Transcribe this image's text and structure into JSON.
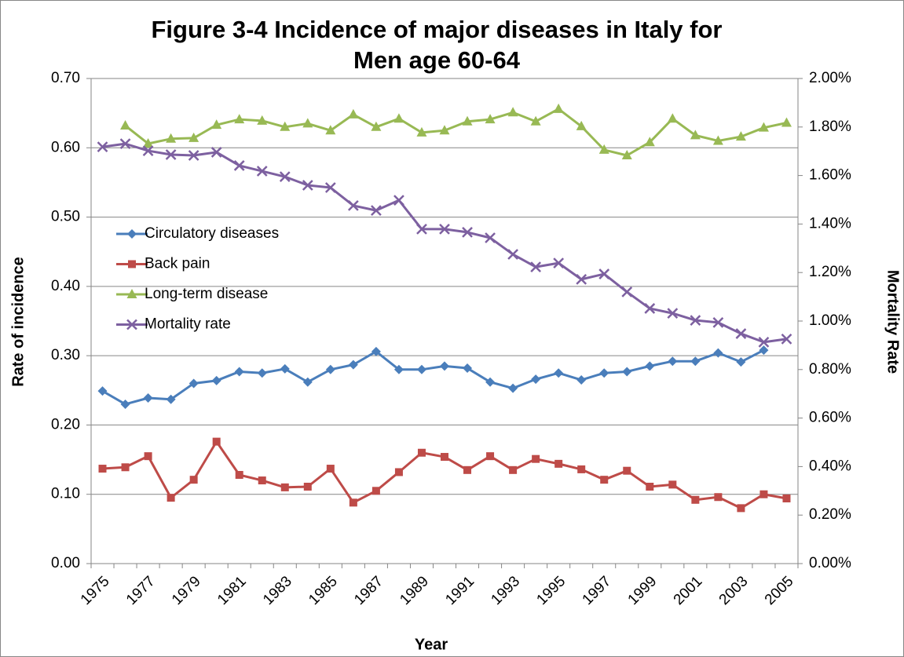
{
  "chart_data": {
    "type": "line",
    "title": [
      "Figure 3-4 Incidence of major diseases in Italy for",
      "Men age 60-64"
    ],
    "x_label": "Year",
    "y_label": "Rate of incidence",
    "y2_label": "Mortality Rate",
    "categories": [
      "1975",
      null,
      "1977",
      null,
      "1979",
      null,
      "1981",
      null,
      "1983",
      null,
      "1985",
      null,
      "1987",
      null,
      "1989",
      null,
      "1991",
      null,
      "1993",
      null,
      "1995",
      null,
      "1997",
      null,
      "1999",
      null,
      "2001",
      null,
      "2003",
      null,
      "2005"
    ],
    "ylim": [
      0,
      0.7
    ],
    "yticks": [
      {
        "value": 0,
        "label": "0.00"
      },
      {
        "value": 0.1,
        "label": "0.10"
      },
      {
        "value": 0.2,
        "label": "0.20"
      },
      {
        "value": 0.3,
        "label": "0.30"
      },
      {
        "value": 0.4,
        "label": "0.40"
      },
      {
        "value": 0.5,
        "label": "0.50"
      },
      {
        "value": 0.6,
        "label": "0.60"
      },
      {
        "value": 0.7,
        "label": "0.70"
      }
    ],
    "y2lim": [
      0,
      2
    ],
    "y2ticks": [
      {
        "value": 0,
        "label": "0.00%"
      },
      {
        "value": 0.2,
        "label": "0.20%"
      },
      {
        "value": 0.4,
        "label": "0.40%"
      },
      {
        "value": 0.6,
        "label": "0.60%"
      },
      {
        "value": 0.8,
        "label": "0.80%"
      },
      {
        "value": 1,
        "label": "1.00%"
      },
      {
        "value": 1.2,
        "label": "1.20%"
      },
      {
        "value": 1.4,
        "label": "1.40%"
      },
      {
        "value": 1.6,
        "label": "1.60%"
      },
      {
        "value": 1.8,
        "label": "1.80%"
      },
      {
        "value": 2,
        "label": "2.00%"
      }
    ],
    "grid": true,
    "legend": "left",
    "series": [
      {
        "name": "Circulatory diseases",
        "color": "#4a7ebb",
        "marker": "diamond",
        "values": [
          0.249,
          0.23,
          0.239,
          0.237,
          0.26,
          0.264,
          0.277,
          0.275,
          0.281,
          0.262,
          0.28,
          0.287,
          0.306,
          0.28,
          0.28,
          0.285,
          0.282,
          0.262,
          0.253,
          0.266,
          0.275,
          0.265,
          0.275,
          0.277,
          0.285,
          0.292,
          0.292,
          0.304,
          0.291,
          0.308,
          null
        ]
      },
      {
        "name": "Back pain",
        "color": "#be4b48",
        "marker": "square",
        "values": [
          0.137,
          0.139,
          0.155,
          0.095,
          0.121,
          0.176,
          0.128,
          0.12,
          0.11,
          0.111,
          0.137,
          0.088,
          0.105,
          0.132,
          0.16,
          0.154,
          0.135,
          0.155,
          0.135,
          0.151,
          0.144,
          0.136,
          0.121,
          0.134,
          0.111,
          0.114,
          0.092,
          0.096,
          0.08,
          0.1,
          0.094
        ]
      },
      {
        "name": "Long-term disease",
        "color": "#98b954",
        "marker": "triangle",
        "values": [
          null,
          0.632,
          0.606,
          0.613,
          0.614,
          0.633,
          0.641,
          0.639,
          0.63,
          0.635,
          0.625,
          0.648,
          0.63,
          0.642,
          0.622,
          0.625,
          0.638,
          0.641,
          0.651,
          0.638,
          0.656,
          0.631,
          0.597,
          0.589,
          0.608,
          0.642,
          0.618,
          0.61,
          0.616,
          0.629,
          0.636
        ]
      },
      {
        "name": "Mortality rate",
        "color": "#7d60a0",
        "marker": "x",
        "axis": "y2",
        "values": [
          1.718,
          1.731,
          1.702,
          1.686,
          1.683,
          1.696,
          1.641,
          1.618,
          1.595,
          1.56,
          1.55,
          1.476,
          1.456,
          1.498,
          1.379,
          1.379,
          1.366,
          1.343,
          1.275,
          1.223,
          1.239,
          1.172,
          1.194,
          1.12,
          1.052,
          1.032,
          1.003,
          0.994,
          0.948,
          0.913,
          0.926
        ]
      }
    ]
  }
}
